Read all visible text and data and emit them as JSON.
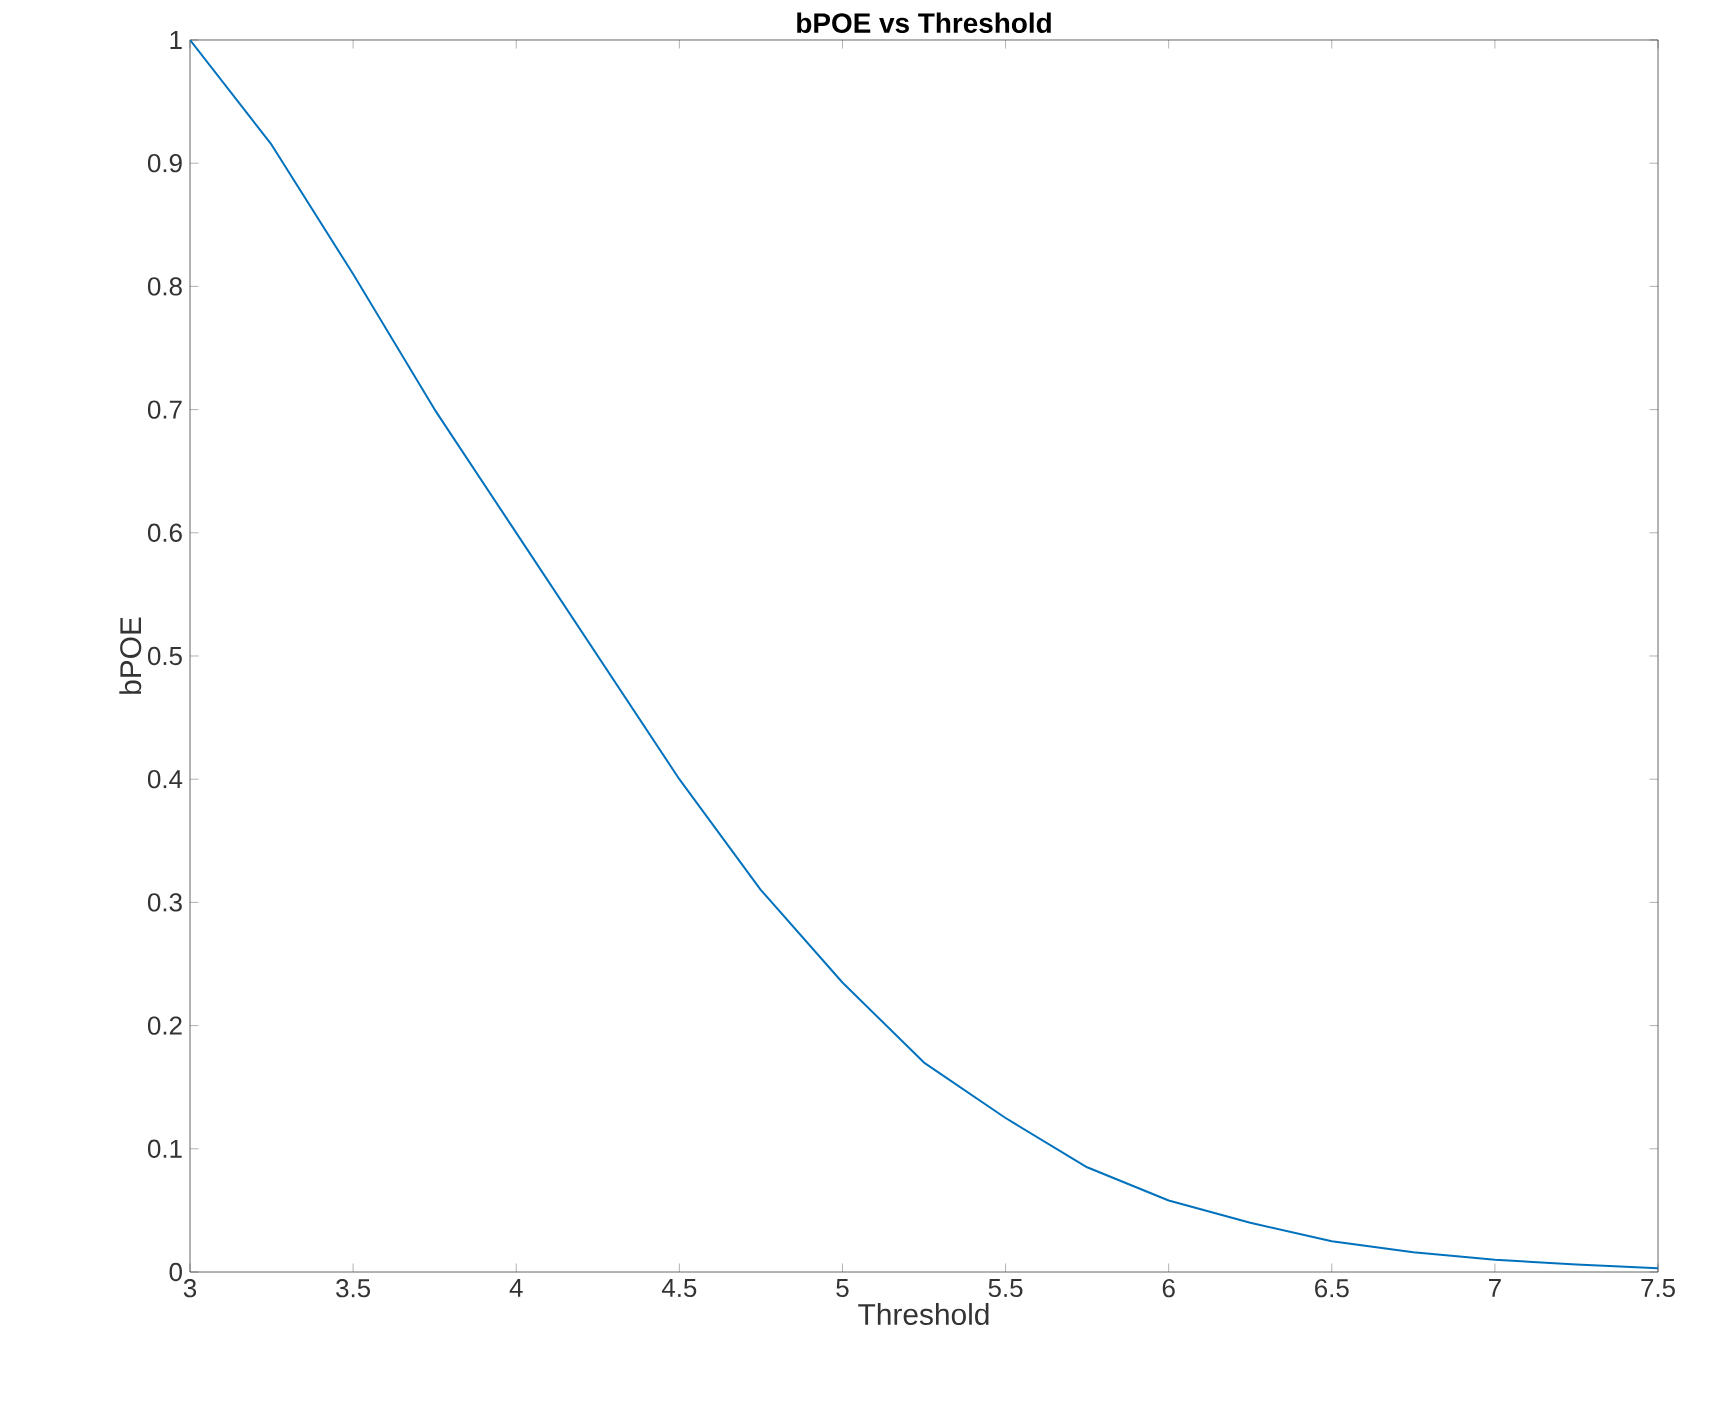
{
  "chart_data": {
    "type": "line",
    "title": "bPOE vs Threshold",
    "xlabel": "Threshold",
    "ylabel": "bPOE",
    "x": [
      3,
      3.25,
      3.5,
      3.75,
      4,
      4.25,
      4.5,
      4.75,
      5,
      5.25,
      5.5,
      5.75,
      6,
      6.25,
      6.5,
      6.75,
      7,
      7.25,
      7.5
    ],
    "series": [
      {
        "color": "#0072bd",
        "values": [
          1.0,
          0.915,
          0.81,
          0.7,
          0.6,
          0.5,
          0.4,
          0.31,
          0.235,
          0.17,
          0.125,
          0.085,
          0.058,
          0.04,
          0.025,
          0.016,
          0.01,
          0.006,
          0.003
        ]
      }
    ],
    "xlim": [
      3,
      7.5
    ],
    "ylim": [
      0,
      1
    ],
    "xticks": [
      3,
      3.5,
      4,
      4.5,
      5,
      5.5,
      6,
      6.5,
      7,
      7.5
    ],
    "yticks": [
      0,
      0.1,
      0.2,
      0.3,
      0.4,
      0.5,
      0.6,
      0.7,
      0.8,
      0.9,
      1
    ],
    "grid": false
  }
}
